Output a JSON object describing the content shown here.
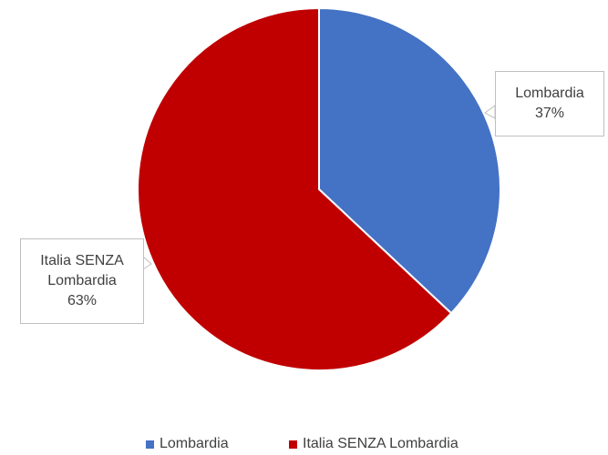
{
  "chart_data": {
    "type": "pie",
    "categories": [
      "Lombardia",
      "Italia SENZA Lombardia"
    ],
    "values": [
      37,
      63
    ],
    "value_labels": [
      "37%",
      "63%"
    ],
    "colors": [
      "#4472c4",
      "#c00000"
    ],
    "legend": "bottom"
  }
}
